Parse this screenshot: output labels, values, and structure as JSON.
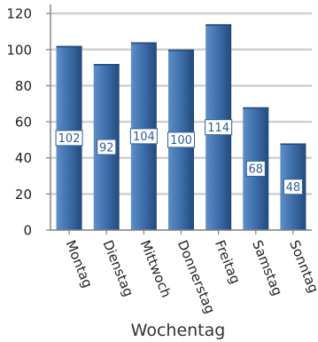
{
  "chart_data": {
    "type": "bar",
    "categories": [
      "Montag",
      "Dienstag",
      "Mittwoch",
      "Donnerstag",
      "Freitag",
      "Samstag",
      "Sonntag"
    ],
    "values": [
      102,
      92,
      104,
      100,
      114,
      68,
      48
    ],
    "data_labels": [
      "102",
      "92",
      "104",
      "100",
      "114",
      "68",
      "48"
    ],
    "xlabel": "Wochentag",
    "ylabel": "",
    "ylim": [
      0,
      125
    ],
    "yticks": [
      0,
      20,
      40,
      60,
      80,
      100,
      120
    ],
    "grid": true,
    "colors": {
      "bar_light": "#5f8fc8",
      "bar_mid": "#3a6aa6",
      "bar_dark": "#23497a",
      "grid": "#d0d0d0",
      "label_text": "#2f5f95"
    }
  }
}
